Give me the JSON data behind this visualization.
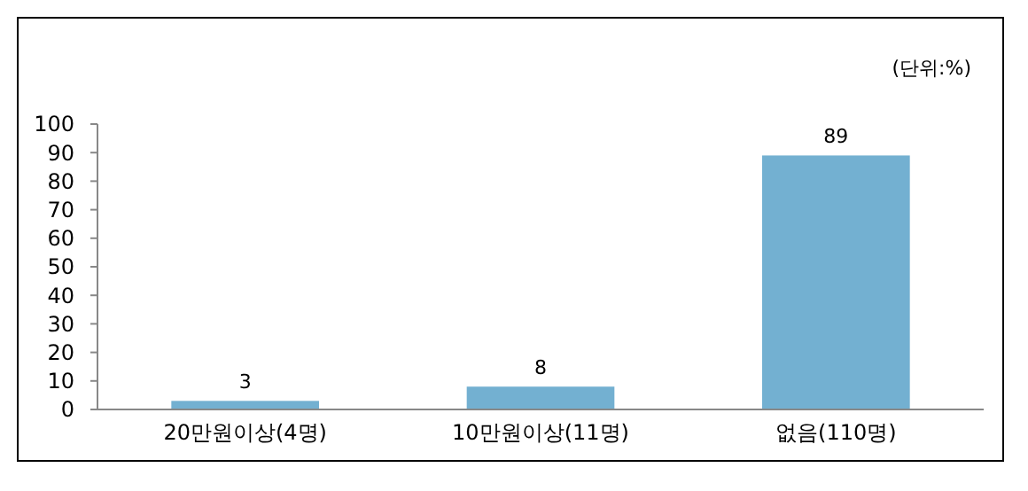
{
  "chart_data": {
    "type": "bar",
    "categories": [
      "20만원이상(4명)",
      "10만원이상(11명)",
      "없음(110명)"
    ],
    "values": [
      3,
      8,
      89
    ],
    "color": "#73b0d1",
    "ylim": [
      0,
      100
    ],
    "yticks": [
      0,
      10,
      20,
      30,
      40,
      50,
      60,
      70,
      80,
      90,
      100
    ],
    "grid": false,
    "data_labels": true,
    "annotations": [
      "(단위:%)"
    ]
  }
}
